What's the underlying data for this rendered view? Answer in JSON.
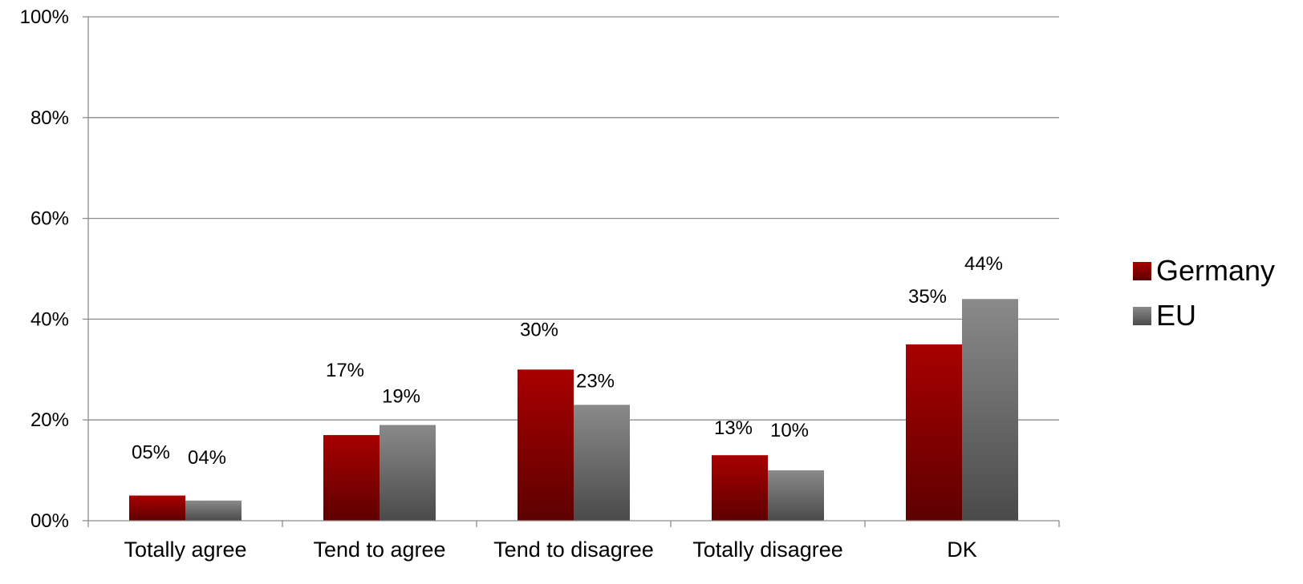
{
  "chart_data": {
    "type": "bar",
    "title": "",
    "xlabel": "",
    "ylabel": "",
    "categories": [
      "Totally agree",
      "Tend to agree",
      "Tend to disagree",
      "Totally disagree",
      "DK"
    ],
    "series": [
      {
        "name": "Germany",
        "values": [
          5,
          17,
          30,
          13,
          35
        ],
        "labels": [
          "05%",
          "17%",
          "30%",
          "13%",
          "35%"
        ],
        "color": "#a30000"
      },
      {
        "name": "EU",
        "values": [
          4,
          19,
          23,
          10,
          44
        ],
        "labels": [
          "04%",
          "19%",
          "23%",
          "10%",
          "44%"
        ],
        "color": "#7f7f7f"
      }
    ],
    "ylim": [
      0,
      100
    ],
    "yticks": [
      0,
      20,
      40,
      60,
      80,
      100
    ],
    "ytick_labels": [
      "00%",
      "20%",
      "40%",
      "60%",
      "80%",
      "100%"
    ],
    "grid": true,
    "legend_position": "right"
  }
}
